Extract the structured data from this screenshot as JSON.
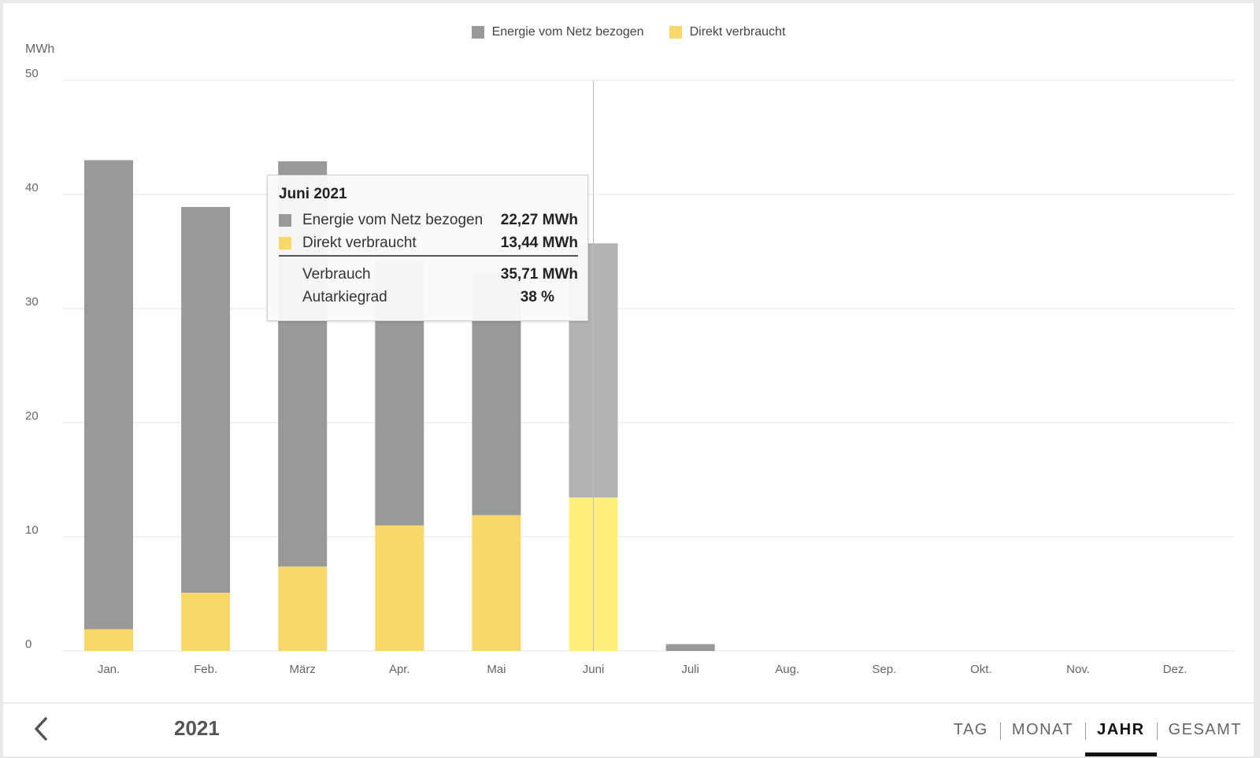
{
  "chart_data": {
    "type": "bar",
    "stacked": true,
    "unit": "MWh",
    "ylabel": "MWh",
    "ylim": [
      0,
      50
    ],
    "yticks": [
      0,
      10,
      20,
      30,
      40,
      50
    ],
    "grid": true,
    "legend_position": "top-center",
    "categories": [
      "Jan.",
      "Feb.",
      "März",
      "Apr.",
      "Mai",
      "Juni",
      "Juli",
      "Aug.",
      "Sep.",
      "Okt.",
      "Nov.",
      "Dez."
    ],
    "series": [
      {
        "name": "Direkt verbraucht",
        "color": "#f9d86a",
        "values": [
          1.9,
          5.1,
          7.4,
          11.0,
          11.9,
          13.44,
          0,
          0,
          0,
          0,
          0,
          0
        ]
      },
      {
        "name": "Energie vom Netz bezogen",
        "color": "#999999",
        "values": [
          41.1,
          33.8,
          35.5,
          23.1,
          21.2,
          22.27,
          0.6,
          0,
          0,
          0,
          0,
          0
        ]
      }
    ],
    "highlighted_index": 5
  },
  "legend": [
    {
      "label": "Energie vom Netz bezogen",
      "color": "#999999"
    },
    {
      "label": "Direkt verbraucht",
      "color": "#f9d86a"
    }
  ],
  "tooltip": {
    "title": "Juni 2021",
    "rows": [
      {
        "label": "Energie vom Netz bezogen",
        "value": "22,27  MWh",
        "color": "#999999"
      },
      {
        "label": "Direkt verbraucht",
        "value": "13,44  MWh",
        "color": "#f9d86a"
      }
    ],
    "summary": [
      {
        "label": "Verbrauch",
        "value": "35,71  MWh"
      },
      {
        "label": "Autarkiegrad",
        "value": "38  %"
      }
    ]
  },
  "footer": {
    "year": "2021",
    "back_icon": "chevron-left-icon",
    "tabs": [
      {
        "label": "TAG",
        "active": false
      },
      {
        "label": "MONAT",
        "active": false
      },
      {
        "label": "JAHR",
        "active": true
      },
      {
        "label": "GESAMT",
        "active": false
      }
    ]
  },
  "colors": {
    "grid_line": "#e6e6e6",
    "highlight_net": "#b3b3b3",
    "highlight_direct": "#fff07e"
  }
}
